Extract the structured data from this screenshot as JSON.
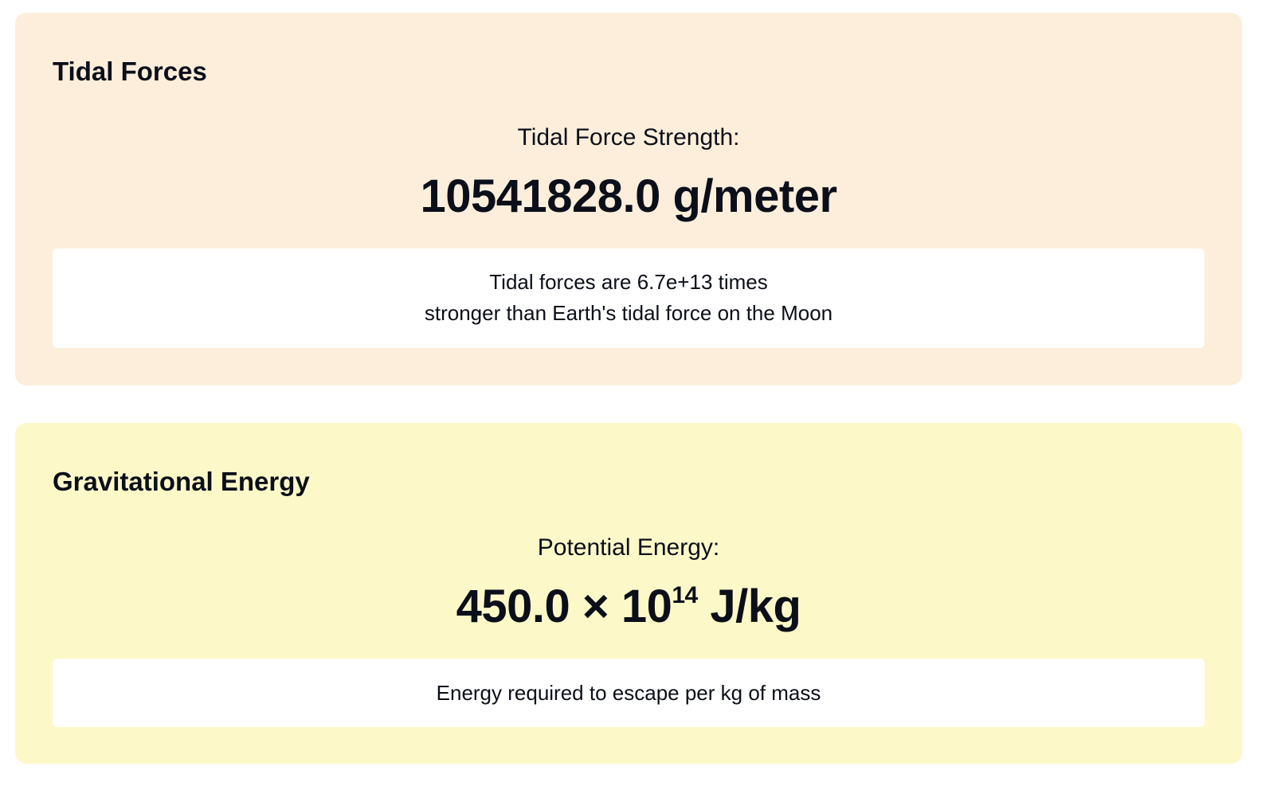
{
  "tidal": {
    "title": "Tidal Forces",
    "label": "Tidal Force Strength:",
    "value": "10541828.0 g/meter",
    "note_line1": "Tidal forces are 6.7e+13 times",
    "note_line2": "stronger than Earth's tidal force on the Moon",
    "background_color": "#fdeedb"
  },
  "energy": {
    "title": "Gravitational Energy",
    "label": "Potential Energy:",
    "value_mantissa": "450.0 × 10",
    "value_exponent": "14",
    "value_unit": " J/kg",
    "note": "Energy required to escape per kg of mass",
    "background_color": "#fdf8c8"
  }
}
